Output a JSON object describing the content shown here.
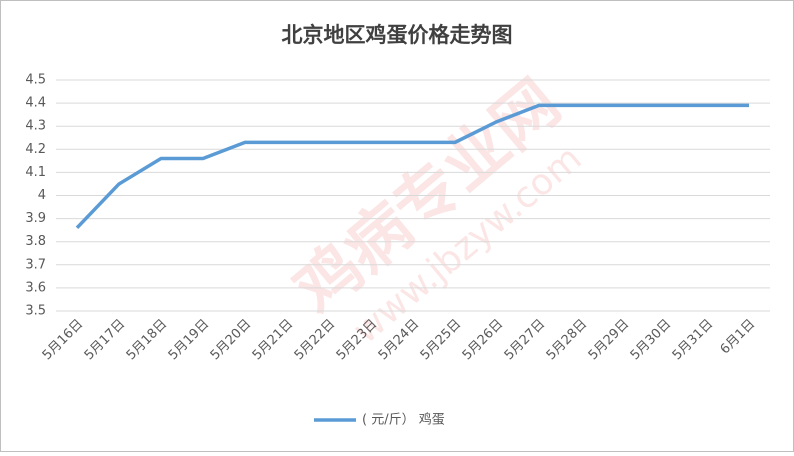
{
  "chart_data": {
    "type": "line",
    "title": "北京地区鸡蛋价格走势图",
    "categories": [
      "5月16日",
      "5月17日",
      "5月18日",
      "5月19日",
      "5月20日",
      "5月21日",
      "5月22日",
      "5月23日",
      "5月24日",
      "5月25日",
      "5月26日",
      "5月27日",
      "5月28日",
      "5月29日",
      "5月30日",
      "5月31日",
      "6月1日"
    ],
    "series": [
      {
        "name": "( 元/斤） 鸡蛋",
        "color": "#5b9bd5",
        "values": [
          3.86,
          4.05,
          4.16,
          4.16,
          4.23,
          4.23,
          4.23,
          4.23,
          4.23,
          4.23,
          4.32,
          4.39,
          4.39,
          4.39,
          4.39,
          4.39,
          4.39
        ]
      }
    ],
    "ylim": [
      3.5,
      4.5
    ],
    "yticks": [
      3.5,
      3.6,
      3.7,
      3.8,
      3.9,
      4,
      4.1,
      4.2,
      4.3,
      4.4,
      4.5
    ],
    "grid": true,
    "legend": "bottom",
    "watermark": [
      "鸡病专业网",
      "www.jbzyw.com"
    ]
  }
}
